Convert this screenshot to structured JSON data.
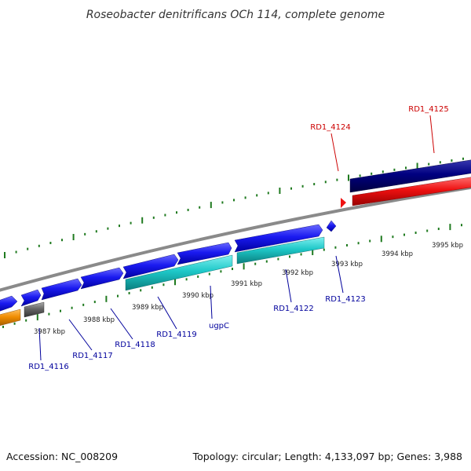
{
  "title": "Roseobacter denitrificans OCh 114, complete genome",
  "accession": "Accession: NC_008209",
  "summary": "Topology: circular; Length: 4,133,097 bp; Genes: 3,988",
  "colors": {
    "backbone": "#888888",
    "tick": "#1f7a1f",
    "gene_blue": "#1a1af0",
    "gene_cyan": "#1ec8c8",
    "gene_navy": "#000080",
    "gene_red": "#ee1111",
    "gene_orange": "#f08c00",
    "gene_grey": "#666666",
    "label_blue": "#00009c",
    "label_red": "#cc0000"
  },
  "kbp_labels": [
    "3987 kbp",
    "3988 kbp",
    "3989 kbp",
    "3990 kbp",
    "3991 kbp",
    "3992 kbp",
    "3993 kbp",
    "3994 kbp",
    "3995 kbp"
  ],
  "gene_labels": [
    {
      "name": "RD1_4116",
      "color": "blue"
    },
    {
      "name": "RD1_4117",
      "color": "blue"
    },
    {
      "name": "RD1_4118",
      "color": "blue"
    },
    {
      "name": "RD1_4119",
      "color": "blue"
    },
    {
      "name": "ugpC",
      "color": "blue"
    },
    {
      "name": "RD1_4122",
      "color": "blue"
    },
    {
      "name": "RD1_4123",
      "color": "blue"
    },
    {
      "name": "RD1_4124",
      "color": "red"
    },
    {
      "name": "RD1_4125",
      "color": "red"
    }
  ]
}
